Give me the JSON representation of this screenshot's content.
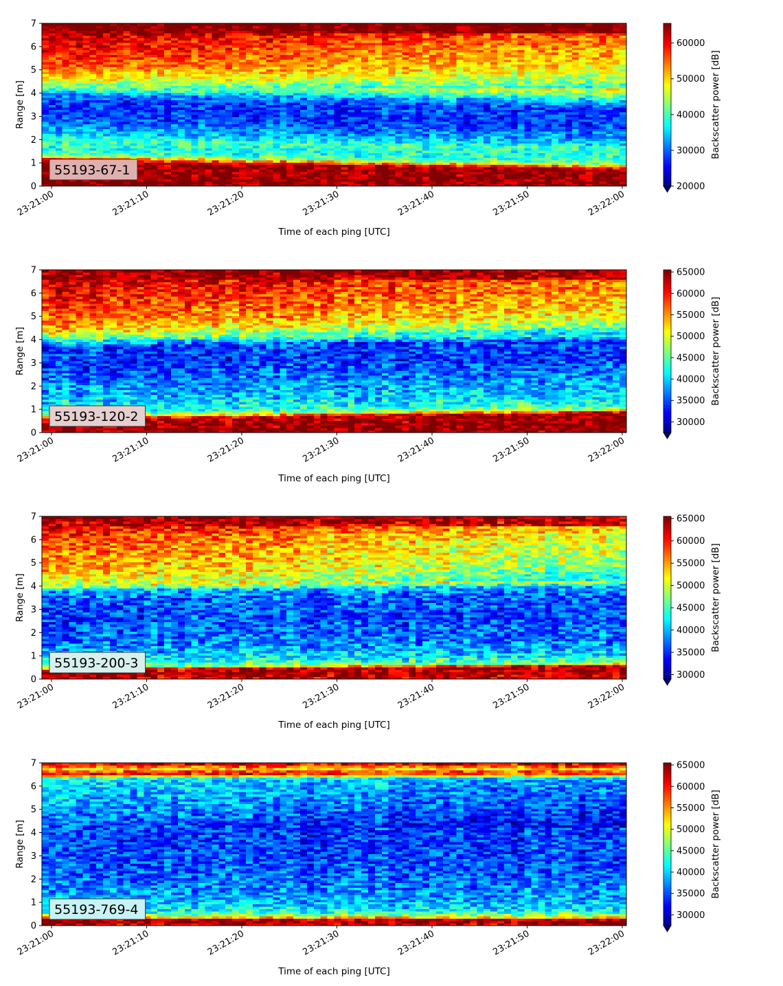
{
  "colors": {
    "colormap": "jet",
    "label_box_fills": [
      "#e0b0b0",
      "#e5cfcf",
      "#d6f0ee",
      "#c8f2f4"
    ]
  },
  "chart_data": [
    {
      "type": "heatmap",
      "label": "55193-67-1",
      "xlabel": "Time of each ping [UTC]",
      "ylabel": "Range [m]",
      "colorbar_label": "Backscatter power [dB]",
      "xticks": [
        "23:21:00",
        "23:21:10",
        "23:21:20",
        "23:21:30",
        "23:21:40",
        "23:21:50",
        "23:22:00"
      ],
      "yticks": [
        "0",
        "1",
        "2",
        "3",
        "4",
        "5",
        "6",
        "7"
      ],
      "ylim": [
        0,
        7
      ],
      "xlim": [
        "23:21:00",
        "23:22:00"
      ],
      "colorbar_ticks": [
        "20000",
        "30000",
        "40000",
        "50000",
        "60000"
      ],
      "clim": [
        20000,
        65500
      ],
      "colorbar_extend": "min",
      "profile": [
        [
          0.0,
          65000
        ],
        [
          0.25,
          65000
        ],
        [
          1.1,
          64000
        ],
        [
          1.25,
          52000
        ],
        [
          1.35,
          42000
        ],
        [
          1.6,
          38000
        ],
        [
          2.0,
          40000
        ],
        [
          2.3,
          34000
        ],
        [
          3.0,
          28000
        ],
        [
          3.7,
          28000
        ],
        [
          4.0,
          33000
        ],
        [
          4.3,
          42000
        ],
        [
          4.7,
          50000
        ],
        [
          5.2,
          56000
        ],
        [
          5.8,
          60000
        ],
        [
          6.4,
          62000
        ],
        [
          6.8,
          65000
        ],
        [
          7.0,
          66000
        ]
      ],
      "boundary_shift_m": -0.4,
      "upper_fade_db": -10000
    },
    {
      "type": "heatmap",
      "label": "55193-120-2",
      "xlabel": "Time of each ping [UTC]",
      "ylabel": "Range [m]",
      "colorbar_label": "Backscatter power [dB]",
      "xticks": [
        "23:21:00",
        "23:21:10",
        "23:21:20",
        "23:21:30",
        "23:21:40",
        "23:21:50",
        "23:22:00"
      ],
      "yticks": [
        "0",
        "1",
        "2",
        "3",
        "4",
        "5",
        "6",
        "7"
      ],
      "ylim": [
        0,
        7
      ],
      "xlim": [
        "23:21:00",
        "23:22:00"
      ],
      "colorbar_ticks": [
        "30000",
        "35000",
        "40000",
        "45000",
        "50000",
        "55000",
        "60000",
        "65000"
      ],
      "clim": [
        27500,
        65500
      ],
      "colorbar_extend": "min",
      "profile": [
        [
          0.0,
          65000
        ],
        [
          0.12,
          65000
        ],
        [
          0.55,
          64000
        ],
        [
          0.7,
          50000
        ],
        [
          0.9,
          43000
        ],
        [
          1.4,
          40000
        ],
        [
          2.2,
          37000
        ],
        [
          3.0,
          34000
        ],
        [
          3.7,
          35000
        ],
        [
          4.0,
          45000
        ],
        [
          4.3,
          52000
        ],
        [
          4.8,
          57000
        ],
        [
          5.5,
          60000
        ],
        [
          6.2,
          62000
        ],
        [
          6.7,
          65000
        ],
        [
          7.0,
          66000
        ]
      ],
      "boundary_shift_m": 0.3,
      "upper_fade_db": -6000
    },
    {
      "type": "heatmap",
      "label": "55193-200-3",
      "xlabel": "Time of each ping [UTC]",
      "ylabel": "Range [m]",
      "colorbar_label": "Backscatter power [dB]",
      "xticks": [
        "23:21:00",
        "23:21:10",
        "23:21:20",
        "23:21:30",
        "23:21:40",
        "23:21:50",
        "23:22:00"
      ],
      "yticks": [
        "0",
        "1",
        "2",
        "3",
        "4",
        "5",
        "6",
        "7"
      ],
      "ylim": [
        0,
        7
      ],
      "xlim": [
        "23:21:00",
        "23:22:00"
      ],
      "colorbar_ticks": [
        "30000",
        "35000",
        "40000",
        "45000",
        "50000",
        "55000",
        "60000",
        "65000"
      ],
      "clim": [
        29000,
        65500
      ],
      "colorbar_extend": "min",
      "profile": [
        [
          0.0,
          63000
        ],
        [
          0.15,
          65000
        ],
        [
          0.4,
          63000
        ],
        [
          0.5,
          48000
        ],
        [
          0.8,
          42000
        ],
        [
          1.5,
          38000
        ],
        [
          2.5,
          36000
        ],
        [
          3.4,
          37000
        ],
        [
          3.8,
          40000
        ],
        [
          4.0,
          50000
        ],
        [
          4.6,
          55000
        ],
        [
          5.3,
          57000
        ],
        [
          6.0,
          59000
        ],
        [
          6.6,
          63000
        ],
        [
          7.0,
          65000
        ]
      ],
      "boundary_shift_m": 0.2,
      "upper_fade_db": -8000
    },
    {
      "type": "heatmap",
      "label": "55193-769-4",
      "xlabel": "Time of each ping [UTC]",
      "ylabel": "Range [m]",
      "colorbar_label": "Backscatter power [dB]",
      "xticks": [
        "23:21:00",
        "23:21:10",
        "23:21:20",
        "23:21:30",
        "23:21:40",
        "23:21:50",
        "23:22:00"
      ],
      "yticks": [
        "0",
        "1",
        "2",
        "3",
        "4",
        "5",
        "6",
        "7"
      ],
      "ylim": [
        0,
        7
      ],
      "xlim": [
        "23:21:00",
        "23:22:00"
      ],
      "colorbar_ticks": [
        "30000",
        "35000",
        "40000",
        "45000",
        "50000",
        "55000",
        "60000",
        "65000"
      ],
      "clim": [
        27500,
        65500
      ],
      "colorbar_extend": "min",
      "profile": [
        [
          0.0,
          60000
        ],
        [
          0.1,
          65000
        ],
        [
          0.3,
          63000
        ],
        [
          0.38,
          50000
        ],
        [
          0.6,
          42000
        ],
        [
          1.2,
          38000
        ],
        [
          2.5,
          35000
        ],
        [
          4.0,
          34000
        ],
        [
          5.0,
          38000
        ],
        [
          5.8,
          40000
        ],
        [
          6.3,
          41000
        ],
        [
          6.55,
          62000
        ],
        [
          6.75,
          52000
        ],
        [
          6.9,
          60000
        ],
        [
          7.0,
          62000
        ]
      ],
      "boundary_shift_m": 0.0,
      "upper_fade_db": -4000
    }
  ]
}
